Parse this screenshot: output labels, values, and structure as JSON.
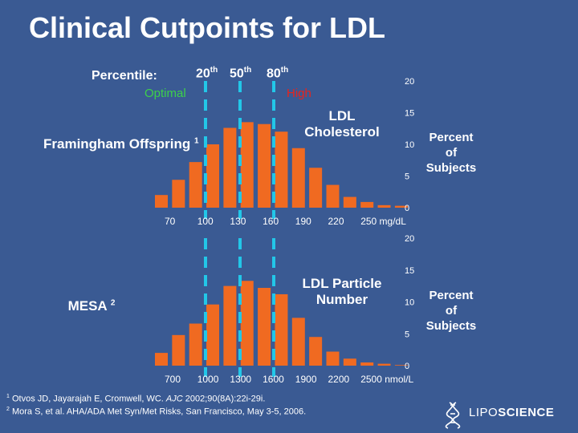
{
  "title": "Clinical Cutpoints for LDL",
  "percentile": {
    "label": "Percentile:",
    "values": [
      {
        "num": "20",
        "suffix": "th"
      },
      {
        "num": "50",
        "suffix": "th"
      },
      {
        "num": "80",
        "suffix": "th"
      }
    ]
  },
  "category_labels": {
    "optimal": "Optimal",
    "high": "High"
  },
  "colors": {
    "background": "#3a5a93",
    "bar": "#f06a21",
    "cutpoint_line": "#22c7e8",
    "optimal": "#3dd14a",
    "high": "#e8231c",
    "text": "#ffffff"
  },
  "chart_data": [
    {
      "type": "bar",
      "title": "LDL Cholesterol",
      "study": {
        "name": "Framingham Offspring",
        "ref": "1"
      },
      "ylabel_lines": [
        "Percent",
        "of",
        "Subjects"
      ],
      "yticks": [
        "20",
        "15",
        "10",
        "5",
        "0"
      ],
      "ylim": [
        0,
        20
      ],
      "xticks": [
        "70",
        "100",
        "130",
        "160",
        "190",
        "220",
        "250 mg/dL"
      ],
      "values": [
        2,
        4.4,
        7.2,
        10,
        12.6,
        13.5,
        13.2,
        12,
        9.4,
        6.3,
        3.6,
        1.7,
        0.9,
        0.4,
        0.3
      ],
      "cutpoints": [
        "20th",
        "50th",
        "80th"
      ]
    },
    {
      "type": "bar",
      "title": "LDL Particle Number",
      "study": {
        "name": "MESA",
        "ref": "2"
      },
      "ylabel_lines": [
        "Percent",
        "of",
        "Subjects"
      ],
      "yticks": [
        "20",
        "15",
        "10",
        "5",
        "0"
      ],
      "ylim": [
        0,
        20
      ],
      "xticks": [
        "700",
        "1000",
        "1300",
        "1600",
        "1900",
        "2200",
        "2500 nmol/L"
      ],
      "values": [
        2,
        4.8,
        6.6,
        9.6,
        12.5,
        13.3,
        12.2,
        11.2,
        7.5,
        4.5,
        2.2,
        1.1,
        0.5,
        0.3,
        0.1
      ],
      "cutpoints": [
        "20th",
        "50th",
        "80th"
      ]
    }
  ],
  "footnotes": [
    {
      "num": "1",
      "pre": "Otvos JD, Jayarajah E, Cromwell, WC. ",
      "journal": "AJC",
      "post": " 2002;90(8A):22i-29i."
    },
    {
      "num": "2",
      "pre": "Mora S, et al. AHA/ADA Met Syn/Met Risks, San Francisco, May 3-5, 2006.",
      "journal": "",
      "post": ""
    }
  ],
  "logo": {
    "part1": "LIPO",
    "part2": "SCIENCE",
    "icon": "helix-icon"
  }
}
